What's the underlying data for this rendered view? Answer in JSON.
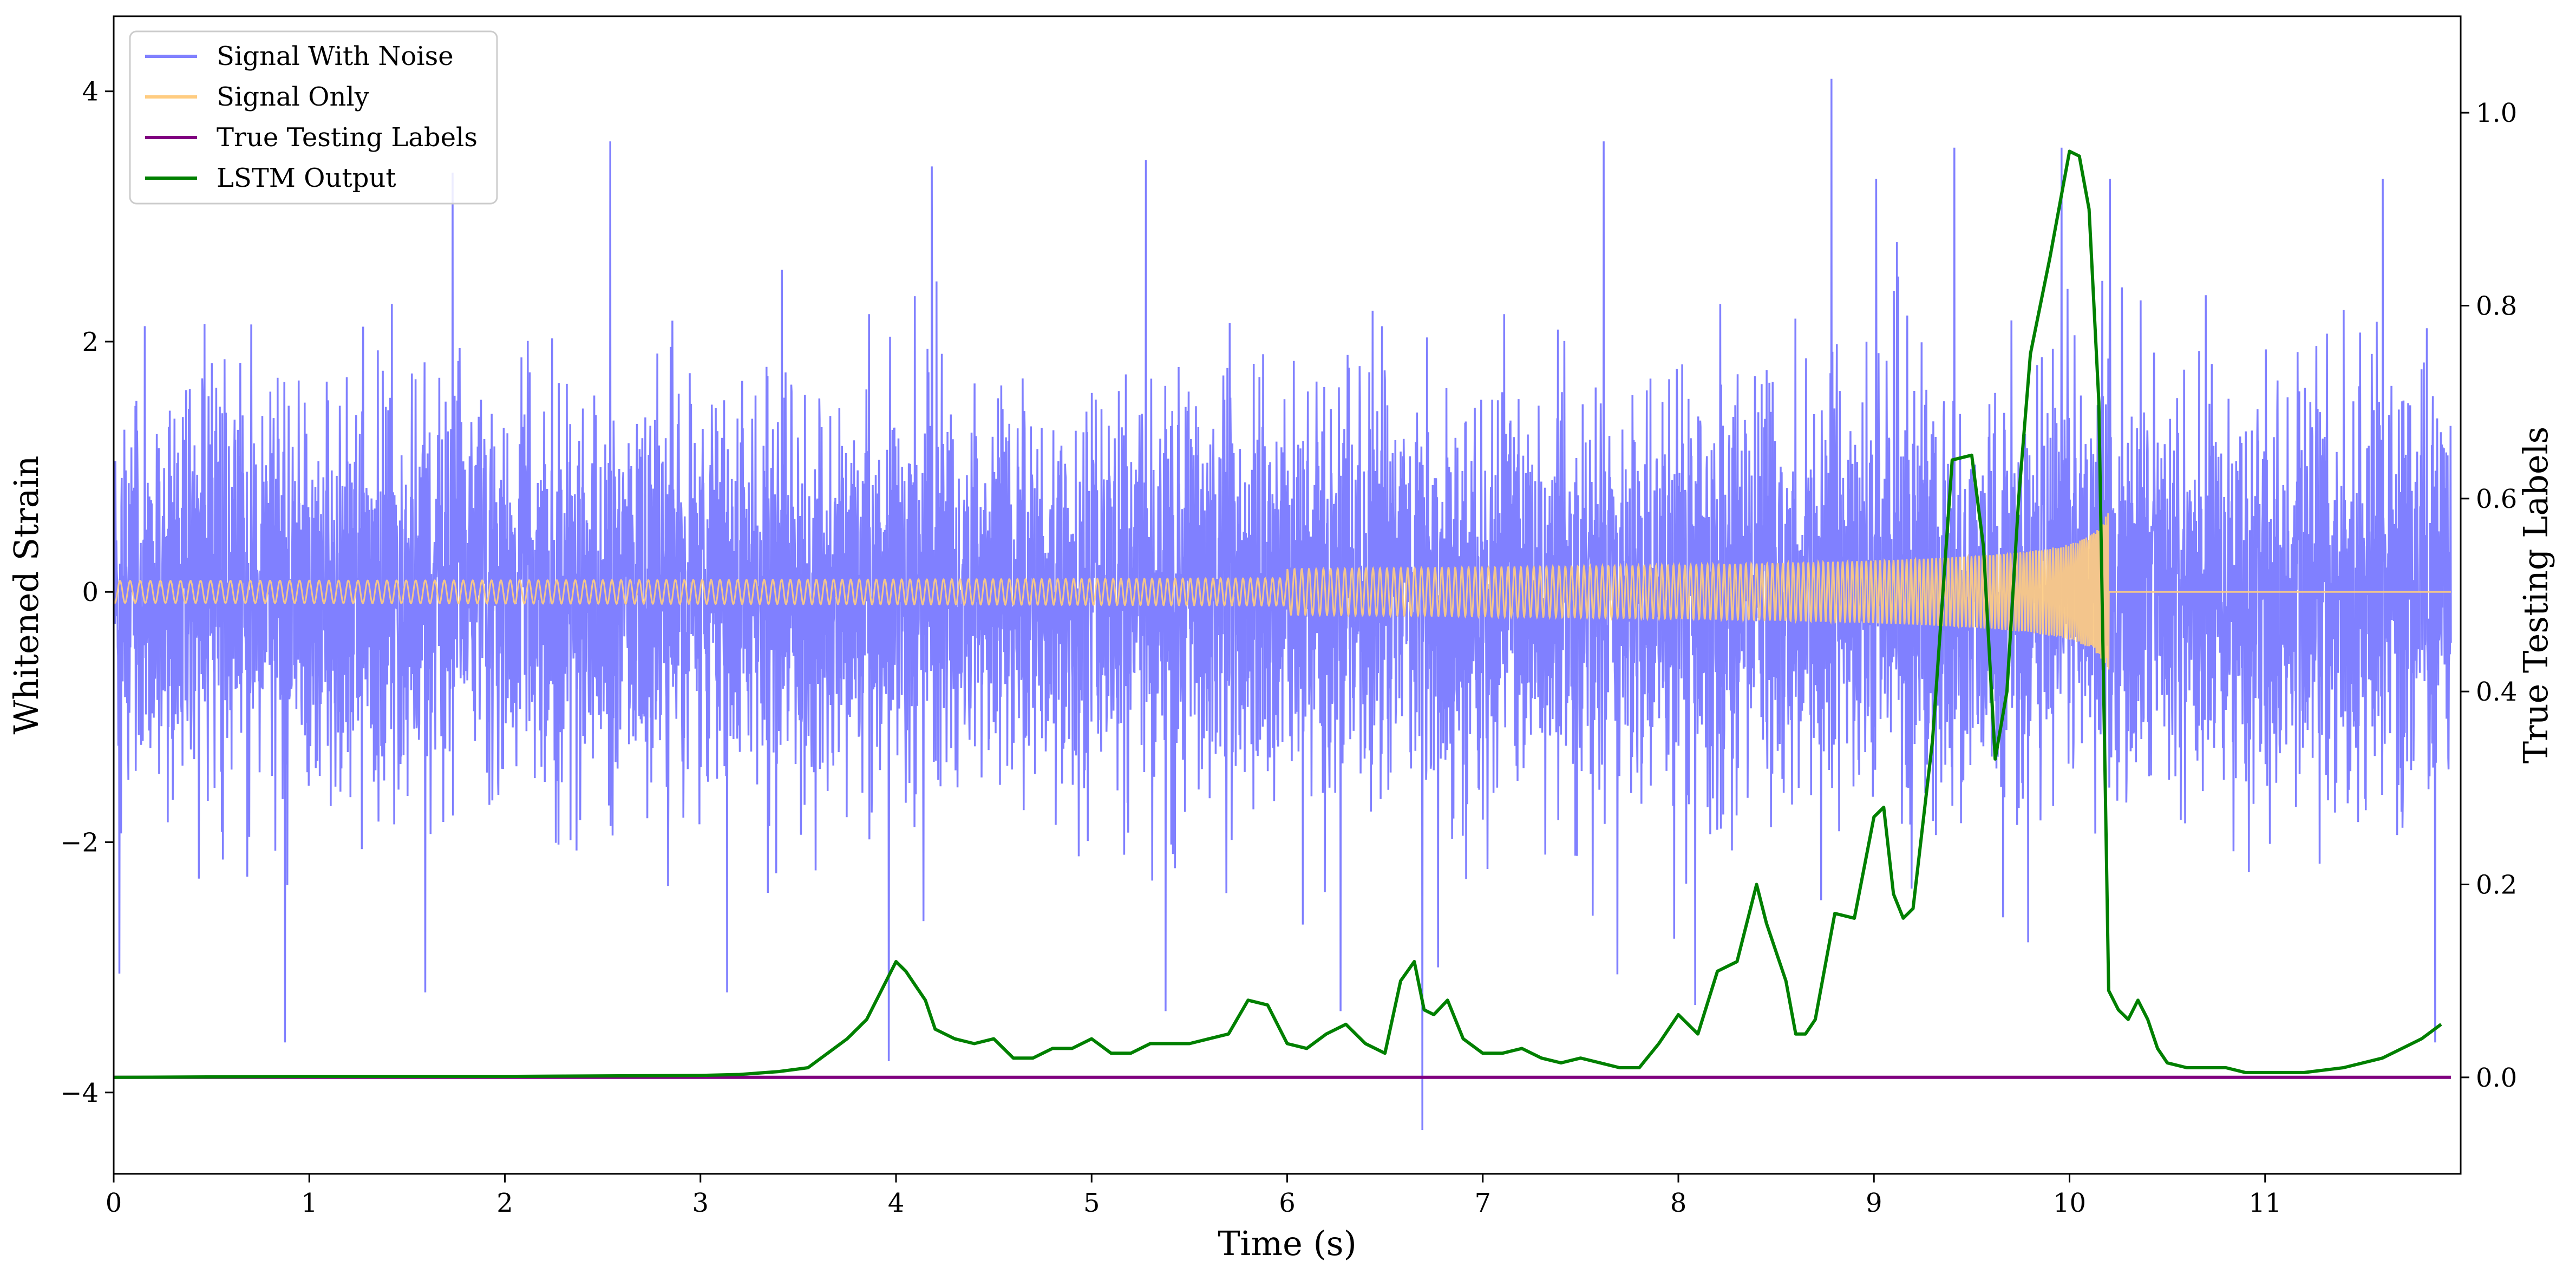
{
  "chart_data": {
    "type": "line",
    "xlabel": "Time (s)",
    "ylabel_left": "Whitened Strain",
    "ylabel_right": "True Testing Labels",
    "xlim": [
      0,
      12
    ],
    "ylim_left": [
      -4.65,
      4.6
    ],
    "ylim_right": [
      -0.1,
      1.1
    ],
    "x_ticks": [
      0,
      1,
      2,
      3,
      4,
      5,
      6,
      7,
      8,
      9,
      10,
      11
    ],
    "x_tick_labels": [
      "0",
      "1",
      "2",
      "3",
      "4",
      "5",
      "6",
      "7",
      "8",
      "9",
      "10",
      "11"
    ],
    "y_left_ticks": [
      -4,
      -2,
      0,
      2,
      4
    ],
    "y_left_tick_labels": [
      "−4",
      "−2",
      "0",
      "2",
      "4"
    ],
    "y_right_ticks": [
      0.0,
      0.2,
      0.4,
      0.6,
      0.8,
      1.0
    ],
    "y_right_tick_labels": [
      "0.0",
      "0.2",
      "0.4",
      "0.6",
      "0.8",
      "1.0"
    ],
    "legend_position": "top-left",
    "grid": false,
    "series": [
      {
        "name": "Signal With Noise",
        "axis": "left",
        "color": "#8080ff",
        "kind": "noise",
        "std": 0.78,
        "spikes": [
          {
            "x": 0.03,
            "y": -3.05
          },
          {
            "x": 0.88,
            "y": -3.6
          },
          {
            "x": 1.74,
            "y": 3.35
          },
          {
            "x": 1.6,
            "y": -3.2
          },
          {
            "x": 2.55,
            "y": 3.6
          },
          {
            "x": 3.15,
            "y": -3.2
          },
          {
            "x": 3.98,
            "y": -3.75
          },
          {
            "x": 4.2,
            "y": 3.4
          },
          {
            "x": 5.3,
            "y": 3.45
          },
          {
            "x": 5.4,
            "y": -3.35
          },
          {
            "x": 6.3,
            "y": -3.35
          },
          {
            "x": 6.72,
            "y": -4.3
          },
          {
            "x": 6.8,
            "y": -3.0
          },
          {
            "x": 7.65,
            "y": 3.6
          },
          {
            "x": 8.12,
            "y": -3.3
          },
          {
            "x": 8.82,
            "y": 4.1
          },
          {
            "x": 9.05,
            "y": 3.3
          },
          {
            "x": 9.45,
            "y": 3.55
          },
          {
            "x": 9.7,
            "y": -2.6
          },
          {
            "x": 9.83,
            "y": -2.8
          },
          {
            "x": 10.0,
            "y": 3.55
          },
          {
            "x": 10.25,
            "y": 3.3
          },
          {
            "x": 11.65,
            "y": 3.3
          },
          {
            "x": 11.92,
            "y": -3.6
          }
        ]
      },
      {
        "name": "Signal Only",
        "axis": "left",
        "color": "#ffcc80",
        "kind": "chirp",
        "merger_time": 10.2,
        "peak_amplitude": 0.7
      },
      {
        "name": "True Testing Labels",
        "axis": "right",
        "color": "#800080",
        "x": [
          0,
          11.95
        ],
        "y": [
          0.0,
          0.0
        ]
      },
      {
        "name": "LSTM Output",
        "axis": "right",
        "color": "#008000",
        "x": [
          0,
          1,
          2,
          3,
          3.2,
          3.4,
          3.55,
          3.65,
          3.75,
          3.85,
          3.95,
          4.0,
          4.05,
          4.1,
          4.15,
          4.2,
          4.3,
          4.4,
          4.5,
          4.6,
          4.7,
          4.8,
          4.9,
          5.0,
          5.1,
          5.2,
          5.3,
          5.4,
          5.5,
          5.6,
          5.7,
          5.8,
          5.9,
          6.0,
          6.1,
          6.2,
          6.3,
          6.4,
          6.5,
          6.58,
          6.65,
          6.7,
          6.75,
          6.82,
          6.9,
          7.0,
          7.1,
          7.2,
          7.3,
          7.4,
          7.5,
          7.6,
          7.7,
          7.8,
          7.9,
          8.0,
          8.1,
          8.2,
          8.3,
          8.4,
          8.45,
          8.5,
          8.55,
          8.6,
          8.65,
          8.7,
          8.8,
          8.9,
          9.0,
          9.05,
          9.1,
          9.15,
          9.2,
          9.3,
          9.4,
          9.5,
          9.56,
          9.62,
          9.68,
          9.74,
          9.8,
          9.9,
          10.0,
          10.05,
          10.1,
          10.15,
          10.2,
          10.25,
          10.3,
          10.35,
          10.4,
          10.45,
          10.5,
          10.6,
          10.7,
          10.8,
          10.9,
          11.0,
          11.2,
          11.4,
          11.6,
          11.8,
          11.9
        ],
        "y": [
          0.0,
          0.001,
          0.001,
          0.002,
          0.003,
          0.006,
          0.01,
          0.025,
          0.04,
          0.06,
          0.1,
          0.12,
          0.11,
          0.095,
          0.08,
          0.05,
          0.04,
          0.035,
          0.04,
          0.02,
          0.02,
          0.03,
          0.03,
          0.04,
          0.025,
          0.025,
          0.035,
          0.035,
          0.035,
          0.04,
          0.045,
          0.08,
          0.075,
          0.035,
          0.03,
          0.045,
          0.055,
          0.035,
          0.025,
          0.1,
          0.12,
          0.07,
          0.065,
          0.08,
          0.04,
          0.025,
          0.025,
          0.03,
          0.02,
          0.015,
          0.02,
          0.015,
          0.01,
          0.01,
          0.035,
          0.065,
          0.045,
          0.11,
          0.12,
          0.2,
          0.16,
          0.13,
          0.1,
          0.045,
          0.045,
          0.06,
          0.17,
          0.165,
          0.27,
          0.28,
          0.19,
          0.165,
          0.175,
          0.35,
          0.64,
          0.645,
          0.55,
          0.33,
          0.4,
          0.6,
          0.75,
          0.85,
          0.96,
          0.955,
          0.9,
          0.7,
          0.09,
          0.07,
          0.06,
          0.08,
          0.06,
          0.03,
          0.015,
          0.01,
          0.01,
          0.01,
          0.005,
          0.005,
          0.005,
          0.01,
          0.02,
          0.04,
          0.055
        ]
      }
    ]
  }
}
